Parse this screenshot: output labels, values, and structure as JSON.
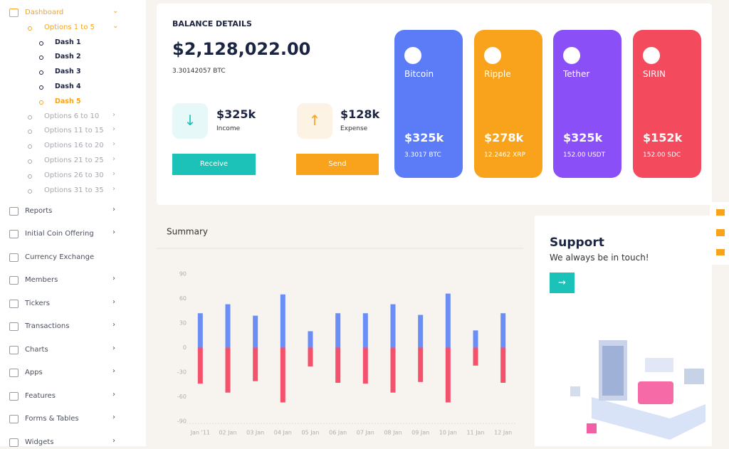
{
  "sidebar": {
    "items": [
      {
        "label": "Dashboard",
        "state": "active"
      },
      {
        "label": "Options 1 to 5",
        "state": "active"
      },
      {
        "label": "Dash 1",
        "state": "normal"
      },
      {
        "label": "Dash 2",
        "state": "normal"
      },
      {
        "label": "Dash 3",
        "state": "normal"
      },
      {
        "label": "Dash 4",
        "state": "normal"
      },
      {
        "label": "Dash 5",
        "state": "active"
      },
      {
        "label": "Options 6 to 10",
        "state": "muted"
      },
      {
        "label": "Options 11 to 15",
        "state": "muted"
      },
      {
        "label": "Options 16 to 20",
        "state": "muted"
      },
      {
        "label": "Options 21 to 25",
        "state": "muted"
      },
      {
        "label": "Options 26 to 30",
        "state": "muted"
      },
      {
        "label": "Options 31 to 35",
        "state": "muted"
      },
      {
        "label": "Reports",
        "state": "menu"
      },
      {
        "label": "Initial Coin Offering",
        "state": "menu"
      },
      {
        "label": "Currency Exchange",
        "state": "menu"
      },
      {
        "label": "Members",
        "state": "menu"
      },
      {
        "label": "Tickers",
        "state": "menu"
      },
      {
        "label": "Transactions",
        "state": "menu"
      },
      {
        "label": "Charts",
        "state": "menu"
      },
      {
        "label": "Apps",
        "state": "menu"
      },
      {
        "label": "Features",
        "state": "menu"
      },
      {
        "label": "Forms & Tables",
        "state": "menu"
      },
      {
        "label": "Widgets",
        "state": "menu"
      }
    ]
  },
  "balance": {
    "title": "BALANCE DETAILS",
    "amount": "$2,128,022.00",
    "btc": "3.30142057 BTC",
    "income": {
      "value": "$325k",
      "label": "Income",
      "button": "Receive"
    },
    "expense": {
      "value": "$128k",
      "label": "Expense",
      "button": "Send"
    }
  },
  "cards": [
    {
      "name": "Bitcoin",
      "value": "$325k",
      "sub": "3.3017 BTC",
      "color": "#5b7cf6"
    },
    {
      "name": "Ripple",
      "value": "$278k",
      "sub": "12.2462 XRP",
      "color": "#f8a31b"
    },
    {
      "name": "Tether",
      "value": "$325k",
      "sub": "152.00 USDT",
      "color": "#8a4ff6"
    },
    {
      "name": "SIRIN",
      "value": "$152k",
      "sub": "152.00 SDC",
      "color": "#f34a5d"
    }
  ],
  "support": {
    "title": "Support",
    "text": "We always be in touch!"
  },
  "chart_data": {
    "type": "bar",
    "title": "Summary",
    "categories": [
      "Jan '11",
      "02 Jan",
      "03 Jan",
      "04 Jan",
      "05 Jan",
      "06 Jan",
      "07 Jan",
      "08 Jan",
      "09 Jan",
      "10 Jan",
      "11 Jan",
      "12 Jan"
    ],
    "series": [
      {
        "color": "#6b8ef6",
        "values": [
          42,
          53,
          39,
          65,
          20,
          42,
          42,
          53,
          40,
          66,
          21,
          42
        ]
      },
      {
        "color": "#f4516c",
        "values": [
          -44,
          -55,
          -41,
          -67,
          -23,
          -43,
          -44,
          -55,
          -42,
          -67,
          -22,
          -43
        ]
      }
    ],
    "ylim": [
      -90,
      90
    ],
    "yticks": [
      -90,
      -60,
      -30,
      0,
      30,
      60,
      90
    ],
    "grid": false
  }
}
